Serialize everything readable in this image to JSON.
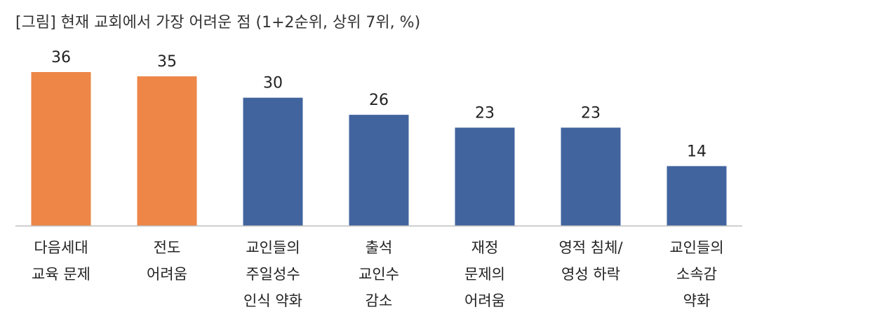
{
  "chart_data": {
    "type": "bar",
    "title": "[그림] 현재 교회에서 가장 어려운 점 (1+2순위, 상위 7위, %)",
    "categories": [
      [
        "다음세대",
        "교육 문제"
      ],
      [
        "전도",
        "어려움"
      ],
      [
        "교인들의",
        "주일성수",
        "인식 약화"
      ],
      [
        "출석",
        "교인수",
        "감소"
      ],
      [
        "재정",
        "문제의",
        "어려움"
      ],
      [
        "영적 침체/",
        "영성 하락"
      ],
      [
        "교인들의",
        "소속감",
        "약화"
      ]
    ],
    "values": [
      36,
      35,
      30,
      26,
      23,
      23,
      14
    ],
    "colors": [
      "#ED8647",
      "#ED8647",
      "#41649E",
      "#41649E",
      "#41649E",
      "#41649E",
      "#41649E"
    ],
    "xlabel": "",
    "ylabel": "",
    "ylim": [
      0,
      36
    ],
    "grid": false,
    "legend": "none"
  }
}
